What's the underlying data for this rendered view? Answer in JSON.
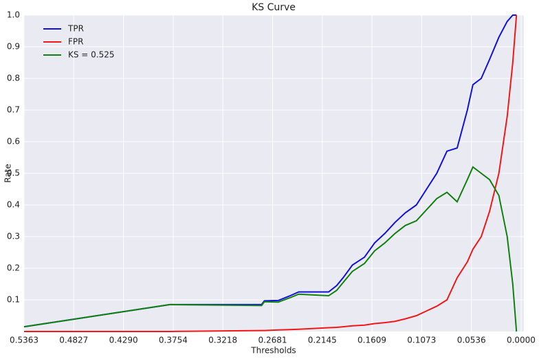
{
  "chart_data": {
    "type": "line",
    "title": "KS Curve",
    "x_label": "Thresholds",
    "y_label": "Rate",
    "x": [
      0.5363,
      0.379,
      0.28,
      0.277,
      0.262,
      0.25,
      0.24,
      0.2077,
      0.199,
      0.192,
      0.182,
      0.169,
      0.158,
      0.147,
      0.136,
      0.125,
      0.113,
      0.102,
      0.091,
      0.08,
      0.069,
      0.058,
      0.052,
      0.043,
      0.034,
      0.024,
      0.015,
      0.009,
      0.005
    ],
    "series": [
      {
        "name": "TPR",
        "color": "#1010e0",
        "values": [
          0.015,
          0.085,
          0.085,
          0.097,
          0.098,
          0.112,
          0.125,
          0.125,
          0.145,
          0.17,
          0.21,
          0.235,
          0.28,
          0.31,
          0.345,
          0.375,
          0.4,
          0.45,
          0.5,
          0.57,
          0.58,
          0.7,
          0.78,
          0.8,
          0.86,
          0.93,
          0.98,
          1.0,
          1.0
        ]
      },
      {
        "name": "FPR",
        "color": "#f01818",
        "values": [
          0.0,
          0.0,
          0.003,
          0.003,
          0.005,
          0.006,
          0.007,
          0.012,
          0.013,
          0.015,
          0.018,
          0.02,
          0.025,
          0.028,
          0.032,
          0.04,
          0.05,
          0.065,
          0.08,
          0.1,
          0.17,
          0.22,
          0.26,
          0.3,
          0.38,
          0.5,
          0.68,
          0.85,
          1.0
        ]
      },
      {
        "name": "KS = 0.525",
        "color": "#108010",
        "values": [
          0.015,
          0.085,
          0.082,
          0.094,
          0.093,
          0.106,
          0.118,
          0.113,
          0.13,
          0.155,
          0.19,
          0.215,
          0.255,
          0.28,
          0.31,
          0.335,
          0.35,
          0.385,
          0.42,
          0.44,
          0.41,
          0.48,
          0.52,
          0.5,
          0.48,
          0.43,
          0.3,
          0.15,
          0.0
        ]
      }
    ],
    "xlim": [
      0.5363,
      -0.003
    ],
    "ylim": [
      0,
      1
    ],
    "xticks": [
      0.5363,
      0.4827,
      {
        "value": 0.429,
        "label": "0.4290"
      },
      0.3754,
      0.3218,
      0.2681,
      0.2145,
      0.1609,
      0.1073,
      0.0536,
      {
        "value": 0,
        "label": "0.0000"
      }
    ],
    "yticks": [
      0.1,
      0.2,
      0.3,
      0.4,
      0.5,
      0.6,
      0.7,
      0.8,
      0.9,
      {
        "value": 1,
        "label": "1.0"
      }
    ],
    "grid": true,
    "legend": "upper-left"
  }
}
